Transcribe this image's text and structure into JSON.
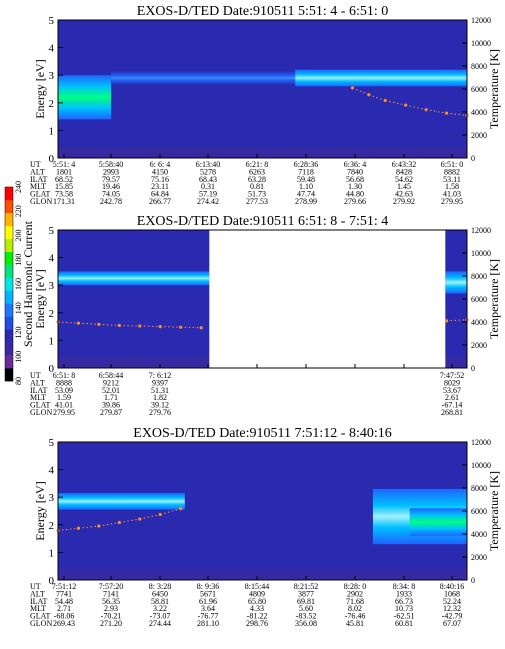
{
  "colors": {
    "background_spectrogram": "#2a2ab0",
    "low_level": "#3a2aa0",
    "band_core": "#00bfff",
    "band_edge": "#1e64ff",
    "hot": "#00ff80",
    "temperature_trace": "#ff8c28",
    "data_gap": "#ffffff"
  },
  "colorbar": {
    "label": "Second Harmonic Current",
    "ticks": [
      "80",
      "100",
      "120",
      "140",
      "160",
      "180",
      "200",
      "220",
      "240"
    ],
    "colors": [
      "#000000",
      "#6a2a9a",
      "#3a2aa0",
      "#2a2ab0",
      "#1e50e6",
      "#1e78ff",
      "#00b4ff",
      "#00e6e6",
      "#00e678",
      "#00f000",
      "#b4f000",
      "#ffff00",
      "#ffb400",
      "#ff5000",
      "#ff0000"
    ]
  },
  "chart_data": [
    {
      "type": "heatmap",
      "title": "EXOS-D/TED   Date:910511  5:51: 4 - 6:51: 0",
      "ylabel": "Energy [eV]",
      "y2label": "Temperature [K]",
      "ylim": [
        0,
        5
      ],
      "y2lim": [
        0,
        12000
      ],
      "yticks": [
        "0",
        "1",
        "2",
        "3",
        "4",
        "5"
      ],
      "y2ticks": [
        "0",
        "2000",
        "4000",
        "6000",
        "8000",
        "10000",
        "12000"
      ],
      "bands": [
        {
          "t_start": 0.0,
          "t_end": 0.13,
          "center": 2.2,
          "half_width": 0.8,
          "level": 205
        },
        {
          "t_start": 0.13,
          "t_end": 0.58,
          "center": 2.9,
          "half_width": 0.25,
          "level": 140
        },
        {
          "t_start": 0.58,
          "t_end": 1.0,
          "center": 2.9,
          "half_width": 0.3,
          "level": 160
        }
      ],
      "gaps": [],
      "temperature": {
        "x": [
          0.72,
          0.76,
          0.8,
          0.85,
          0.9,
          0.95,
          1.0
        ],
        "y": [
          6100,
          5500,
          5000,
          4600,
          4200,
          3900,
          3700
        ]
      },
      "orbit": {
        "labels": [
          "UT",
          "ALT",
          "ILAT",
          "MLT",
          "GLAT",
          "GLON"
        ],
        "columns": [
          [
            "5:51: 4",
            "1801",
            "68.52",
            "15.85",
            "73.58",
            "171.31"
          ],
          [
            "5:58:40",
            "2993",
            "79.57",
            "19.46",
            "74.05",
            "242.78"
          ],
          [
            "6: 6: 4",
            "4150",
            "75.16",
            "23.11",
            "64.84",
            "266.77"
          ],
          [
            "6:13:40",
            "5278",
            "68.43",
            "0.31",
            "57.19",
            "274.42"
          ],
          [
            "6:21: 8",
            "6263",
            "63.28",
            "0.81",
            "51.73",
            "277.53"
          ],
          [
            "6:28:36",
            "7118",
            "59.48",
            "1.10",
            "47.74",
            "278.99"
          ],
          [
            "6:36: 4",
            "7840",
            "56.68",
            "1.30",
            "44.80",
            "279.66"
          ],
          [
            "6:43:32",
            "8428",
            "54.62",
            "1.45",
            "42.63",
            "279.92"
          ],
          [
            "6:51: 0",
            "8882",
            "53.11",
            "1.58",
            "41.03",
            "279.95"
          ]
        ]
      }
    },
    {
      "type": "heatmap",
      "title": "EXOS-D/TED   Date:910511  6:51: 8 - 7:51: 4",
      "ylabel": "Energy [eV]",
      "y2label": "Temperature [K]",
      "ylim": [
        0,
        5
      ],
      "y2lim": [
        0,
        12000
      ],
      "yticks": [
        "0",
        "1",
        "2",
        "3",
        "4",
        "5"
      ],
      "y2ticks": [
        "0",
        "2000",
        "4000",
        "6000",
        "8000",
        "10000",
        "12000"
      ],
      "bands": [
        {
          "t_start": 0.0,
          "t_end": 0.37,
          "center": 3.25,
          "half_width": 0.25,
          "level": 165
        },
        {
          "t_start": 0.947,
          "t_end": 1.0,
          "center": 3.1,
          "half_width": 0.4,
          "level": 165
        }
      ],
      "gaps": [
        [
          0.37,
          0.947
        ]
      ],
      "temperature": {
        "x": [
          0.0,
          0.05,
          0.1,
          0.15,
          0.2,
          0.25,
          0.3,
          0.35,
          0.95,
          1.0
        ],
        "y": [
          4000,
          3900,
          3800,
          3700,
          3650,
          3600,
          3550,
          3500,
          4100,
          4200
        ]
      },
      "orbit": {
        "labels": [
          "UT",
          "ALT",
          "ILAT",
          "MLT",
          "GLAT",
          "GLON"
        ],
        "columns": [
          [
            "6:51: 8",
            "8888",
            "53.09",
            "1.59",
            "41.01",
            "279.95"
          ],
          [
            "6:58:44",
            "9212",
            "52.01",
            "1.71",
            "39.86",
            "279.87"
          ],
          [
            "7: 6:12",
            "9397",
            "51.31",
            "1.82",
            "39.12",
            "279.76"
          ],
          [
            "",
            "",
            "",
            "",
            "",
            ""
          ],
          [
            "",
            "",
            "",
            "",
            "",
            ""
          ],
          [
            "",
            "",
            "",
            "",
            "",
            ""
          ],
          [
            "",
            "",
            "",
            "",
            "",
            ""
          ],
          [
            "",
            "",
            "",
            "",
            "",
            ""
          ],
          [
            "7:47:52",
            "8029",
            "53.67",
            "2.61",
            "-67.14",
            "268.81"
          ]
        ]
      }
    },
    {
      "type": "heatmap",
      "title": "EXOS-D/TED   Date:910511  7:51:12 - 8:40:16",
      "ylabel": "Energy [eV]",
      "y2label": "Temperature [K]",
      "ylim": [
        0,
        5
      ],
      "y2lim": [
        0,
        12000
      ],
      "yticks": [
        "0",
        "1",
        "2",
        "3",
        "4",
        "5"
      ],
      "y2ticks": [
        "0",
        "2000",
        "4000",
        "6000",
        "8000",
        "10000",
        "12000"
      ],
      "bands": [
        {
          "t_start": 0.0,
          "t_end": 0.31,
          "center": 2.85,
          "half_width": 0.3,
          "level": 165
        },
        {
          "t_start": 0.77,
          "t_end": 1.0,
          "center": 2.3,
          "half_width": 1.0,
          "level": 195
        },
        {
          "t_start": 0.86,
          "t_end": 1.0,
          "center": 2.1,
          "half_width": 0.5,
          "level": 220
        }
      ],
      "gaps": [],
      "temperature": {
        "x": [
          0.0,
          0.05,
          0.1,
          0.15,
          0.2,
          0.25,
          0.3
        ],
        "y": [
          4300,
          4500,
          4700,
          5000,
          5300,
          5700,
          6200
        ]
      },
      "orbit": {
        "labels": [
          "UT",
          "ALT",
          "ILAT",
          "MLT",
          "GLAT",
          "GLON"
        ],
        "columns": [
          [
            "7:51:12",
            "7741",
            "54.48",
            "2.71",
            "-68.06",
            "269.43"
          ],
          [
            "7:57:20",
            "7141",
            "56.35",
            "2.93",
            "-70.21",
            "271.20"
          ],
          [
            "8: 3:28",
            "6450",
            "58.81",
            "3.22",
            "-73.07",
            "274.44"
          ],
          [
            "8: 9:36",
            "5671",
            "61.96",
            "3.64",
            "-76.77",
            "281.10"
          ],
          [
            "8:15:44",
            "4809",
            "65.80",
            "4.33",
            "-81.22",
            "298.76"
          ],
          [
            "8:21:52",
            "3877",
            "69.81",
            "5.60",
            "-83.52",
            "356.08"
          ],
          [
            "8:28: 0",
            "2902",
            "71.68",
            "8.02",
            "-76.46",
            "45.81"
          ],
          [
            "8:34: 8",
            "1933",
            "66.73",
            "10.73",
            "-62.51",
            "60.81"
          ],
          [
            "8:40:16",
            "1068",
            "52.24",
            "12.32",
            "-42.79",
            "67.07"
          ]
        ]
      }
    }
  ]
}
